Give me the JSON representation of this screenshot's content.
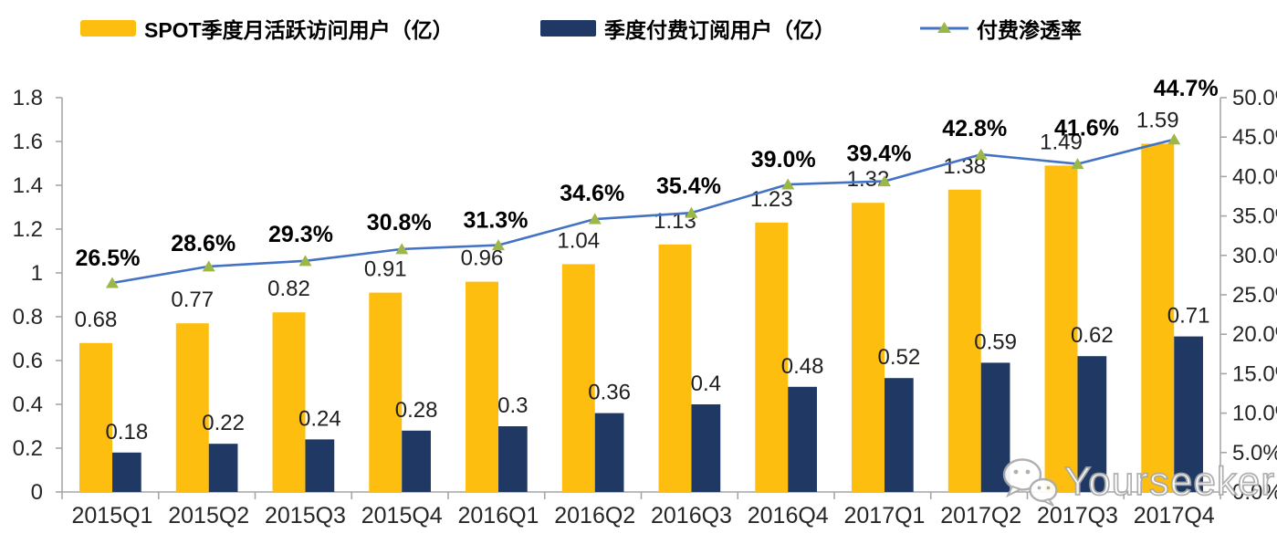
{
  "legend": [
    {
      "label": "SPOT季度月活跃访问用户（亿）",
      "type": "bar-swatch",
      "color": "#FDBE10"
    },
    {
      "label": "季度付费订阅用户（亿）",
      "type": "bar-swatch",
      "color": "#1F3864"
    },
    {
      "label": "付费渗透率",
      "type": "line-swatch",
      "color": "#4472C4",
      "marker_color": "#9CB648"
    }
  ],
  "watermark": {
    "text": "Yourseeker",
    "icon": "wechat-icon"
  },
  "chart_data": {
    "type": "bar",
    "subtype": "grouped-bars-with-line-combo",
    "title": "",
    "xlabel": "",
    "ylabel_left": "",
    "ylabel_right": "",
    "grid": false,
    "legend_position": "top",
    "categories": [
      "2015Q1",
      "2015Q2",
      "2015Q3",
      "2015Q4",
      "2016Q1",
      "2016Q2",
      "2016Q3",
      "2016Q4",
      "2017Q1",
      "2017Q2",
      "2017Q3",
      "2017Q4"
    ],
    "series": [
      {
        "name": "SPOT季度月活跃访问用户（亿）",
        "type": "bar",
        "axis": "left",
        "color": "#FDBE10",
        "values": [
          0.68,
          0.77,
          0.82,
          0.91,
          0.96,
          1.04,
          1.13,
          1.23,
          1.32,
          1.38,
          1.49,
          1.59
        ],
        "labels": [
          "0.68",
          "0.77",
          "0.82",
          "0.91",
          "0.96",
          "1.04",
          "1.13",
          "1.23",
          "1.32",
          "1.38",
          "1.49",
          "1.59"
        ]
      },
      {
        "name": "季度付费订阅用户（亿）",
        "type": "bar",
        "axis": "left",
        "color": "#1F3864",
        "values": [
          0.18,
          0.22,
          0.24,
          0.28,
          0.3,
          0.36,
          0.4,
          0.48,
          0.52,
          0.59,
          0.62,
          0.71
        ],
        "labels": [
          "0.18",
          "0.22",
          "0.24",
          "0.28",
          "0.3",
          "0.36",
          "0.4",
          "0.48",
          "0.52",
          "0.59",
          "0.62",
          "0.71"
        ]
      },
      {
        "name": "付费渗透率",
        "type": "line",
        "axis": "right",
        "color": "#4472C4",
        "marker": "triangle",
        "marker_color": "#9CB648",
        "values": [
          26.5,
          28.6,
          29.3,
          30.8,
          31.3,
          34.6,
          35.4,
          39.0,
          39.4,
          42.8,
          41.6,
          44.7
        ],
        "labels": [
          "26.5%",
          "28.6%",
          "29.3%",
          "30.8%",
          "31.3%",
          "34.6%",
          "35.4%",
          "39.0%",
          "39.4%",
          "42.8%",
          "41.6%",
          "44.7%"
        ],
        "label_offsets": {
          "dx": [
            -5,
            -6,
            -5,
            -3,
            -3,
            -3,
            -3,
            -5,
            -6,
            -7,
            10,
            13
          ],
          "dy": [
            -28,
            -26,
            -30,
            -30,
            -28,
            -29,
            -30,
            -28,
            -31,
            -29,
            -40,
            -57
          ]
        }
      }
    ],
    "left_axis": {
      "min": 0,
      "max": 1.8,
      "step": 0.2,
      "ticks": [
        "0",
        "0.2",
        "0.4",
        "0.6",
        "0.8",
        "1",
        "1.2",
        "1.4",
        "1.6",
        "1.8"
      ]
    },
    "right_axis": {
      "min": 0,
      "max": 50,
      "step": 5,
      "ticks": [
        "0.0%",
        "5.0%",
        "10.0%",
        "15.0%",
        "20.0%",
        "25.0%",
        "30.0%",
        "35.0%",
        "40.0%",
        "45.0%",
        "50.0%"
      ]
    },
    "axis_color": "#A6A6A6"
  }
}
